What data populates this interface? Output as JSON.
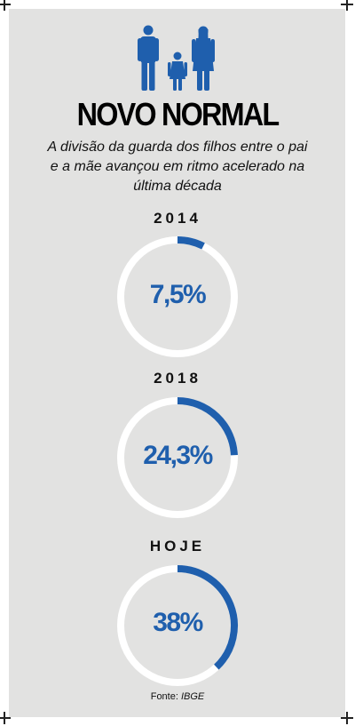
{
  "header": {
    "title": "NOVO NORMAL",
    "subtitle": "A divisão da guarda dos filhos entre o pai e a mãe avançou em ritmo acelerado na última década"
  },
  "chart_data": {
    "type": "pie",
    "categories": [
      "2014",
      "2018",
      "HOJE"
    ],
    "values": [
      7.5,
      24.3,
      38
    ],
    "value_labels": [
      "7,5%",
      "24,3%",
      "38%"
    ],
    "title": "NOVO NORMAL",
    "xlabel": "",
    "ylabel": ""
  },
  "footer": {
    "source_prefix": "Fonte: ",
    "source_name": "IBGE"
  },
  "colors": {
    "accent": "#1f5fad",
    "ring": "#ffffff",
    "background": "#e2e2e1"
  },
  "icons": [
    "father-icon",
    "child-icon",
    "mother-icon"
  ]
}
